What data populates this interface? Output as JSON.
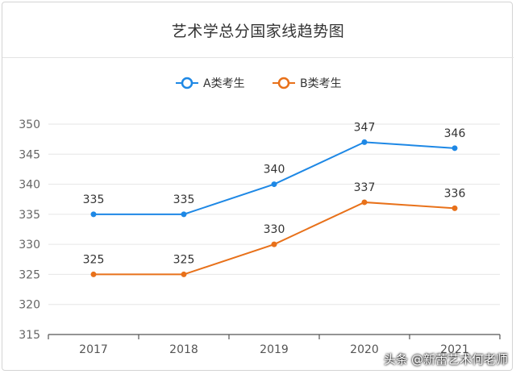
{
  "chart_data": {
    "type": "line",
    "title": "艺术学总分国家线趋势图",
    "categories": [
      "2017",
      "2018",
      "2019",
      "2020",
      "2021"
    ],
    "series": [
      {
        "name": "A类考生",
        "color": "#1e88e5",
        "values": [
          335,
          335,
          340,
          347,
          346
        ]
      },
      {
        "name": "B类考生",
        "color": "#e8711a",
        "values": [
          325,
          325,
          330,
          337,
          336
        ]
      }
    ],
    "yticks": [
      315,
      320,
      325,
      330,
      335,
      340,
      345,
      350
    ],
    "ylim": [
      315,
      350
    ],
    "grid": true,
    "legend": "top-center",
    "xlabel": "",
    "ylabel": ""
  },
  "watermark": {
    "prefix": "头条",
    "handle": "@新蕾艺术何老师"
  }
}
